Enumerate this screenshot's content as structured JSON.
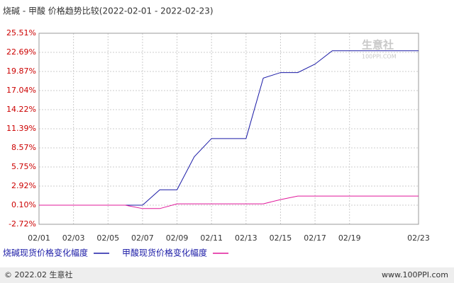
{
  "chart_data": {
    "type": "line",
    "title": "烧碱 - 甲酸 价格趋势比较(2022-02-01 - 2022-02-23)",
    "categories": [
      "02/01",
      null,
      "02/03",
      null,
      "02/05",
      null,
      "02/07",
      null,
      "02/09",
      null,
      "02/11",
      null,
      "02/13",
      null,
      "02/15",
      null,
      "02/17",
      null,
      "02/19",
      null,
      null,
      null,
      "02/23"
    ],
    "series": [
      {
        "name": "烧碱现货价格变化幅度",
        "color": "#1a1aa6",
        "values": [
          null,
          null,
          null,
          null,
          null,
          0.1,
          0.1,
          2.38,
          2.38,
          7.26,
          9.95,
          9.95,
          9.95,
          18.88,
          19.7,
          19.7,
          20.95,
          22.92,
          22.92,
          22.92,
          22.92,
          22.92,
          22.92
        ]
      },
      {
        "name": "甲酸现货价格变化幅度",
        "color": "#e0189a",
        "values": [
          0.1,
          0.1,
          0.1,
          0.1,
          0.1,
          0.1,
          -0.4,
          -0.4,
          0.3,
          0.3,
          0.3,
          0.3,
          0.3,
          0.3,
          0.93,
          1.45,
          1.45,
          1.45,
          1.45,
          1.45,
          1.45,
          1.45,
          1.45
        ]
      }
    ],
    "ylim": [
      -2.72,
      25.51
    ],
    "yticks": [
      {
        "value": -2.72,
        "label": "-2.72%"
      },
      {
        "value": 0.1,
        "label": "0.10%"
      },
      {
        "value": 2.92,
        "label": "2.92%"
      },
      {
        "value": 5.75,
        "label": "5.75%"
      },
      {
        "value": 8.57,
        "label": "8.57%"
      },
      {
        "value": 11.39,
        "label": "11.39%"
      },
      {
        "value": 14.22,
        "label": "14.22%"
      },
      {
        "value": 17.04,
        "label": "17.04%"
      },
      {
        "value": 19.87,
        "label": "19.87%"
      },
      {
        "value": 22.69,
        "label": "22.69%"
      },
      {
        "value": 25.51,
        "label": "25.51%"
      }
    ],
    "grid": true
  },
  "watermark": {
    "name": "生意社",
    "site": "100PPI.COM"
  },
  "footer": {
    "left": "© 2022.02 生意社",
    "right": "www.100PPI.com"
  }
}
